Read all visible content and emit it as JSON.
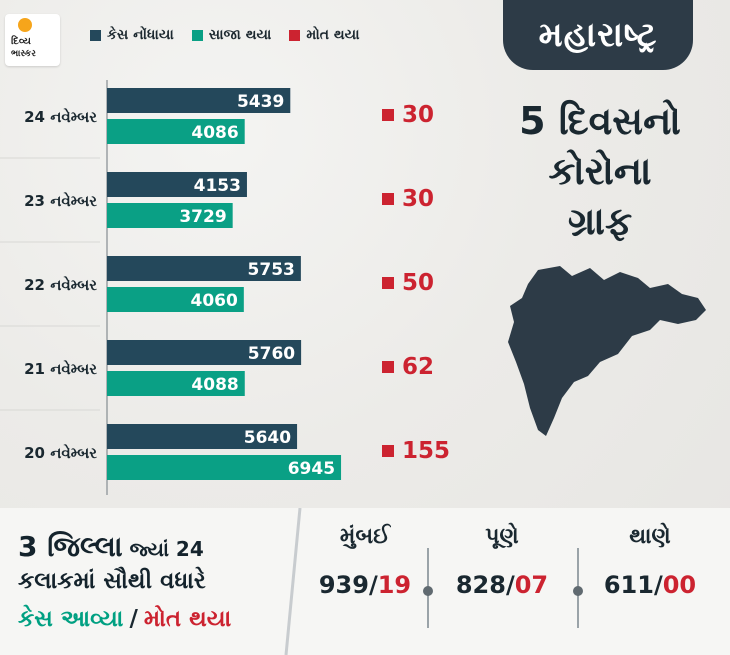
{
  "brand": {
    "logo_line1": "દિવ્ય",
    "logo_line2": "ભાસ્કર"
  },
  "colors": {
    "cases": "#24485b",
    "recovered": "#0aa085",
    "deaths": "#cc2330",
    "dark_panel": "#2d3b47"
  },
  "legend": {
    "cases": "કેસ નોંધાયા",
    "recovered": "સાજા થયા",
    "deaths": "મોત થયા"
  },
  "right_panel": {
    "state": "મહારાષ્ટ્ર",
    "headline_lines": [
      "5 દિવસનો",
      "કોરોના",
      "ગ્રાફ"
    ]
  },
  "chart_data": {
    "type": "bar",
    "orientation": "horizontal",
    "categories": [
      "24 નવેમ્બર",
      "23 નવેમ્બર",
      "22 નવેમ્બર",
      "21 નવેમ્બર",
      "20 નવેમ્બર"
    ],
    "series": [
      {
        "name": "કેસ નોંધાયા",
        "values": [
          5439,
          4153,
          5753,
          5760,
          5640
        ]
      },
      {
        "name": "સાજા થયા",
        "values": [
          4086,
          3729,
          4060,
          4088,
          6945
        ]
      },
      {
        "name": "મોત થયા",
        "values": [
          30,
          30,
          50,
          62,
          155
        ]
      }
    ],
    "legend_position": "top"
  },
  "bottom": {
    "title_num": "3",
    "title_word": "જિલ્લા",
    "title_rest": " જ્યાં 24",
    "line2": "કલાકમાં સૌથી વધારે",
    "line3_a": "કેસ આવ્યા",
    "line3_sep": "/",
    "line3_b": "મોત થયા",
    "cities": [
      {
        "name": "મુંબઈ",
        "cases": "939",
        "sep": "/",
        "deaths": "19"
      },
      {
        "name": "પૂણે",
        "cases": "828",
        "sep": "/",
        "deaths": "07"
      },
      {
        "name": "થાણે",
        "cases": "611",
        "sep": "/",
        "deaths": "00"
      }
    ]
  }
}
